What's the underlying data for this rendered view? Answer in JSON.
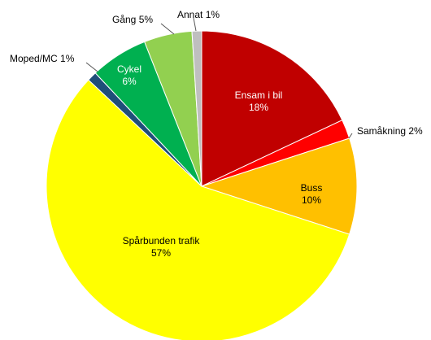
{
  "chart_data": {
    "type": "pie",
    "categories": [
      "Ensam i bil",
      "Samåkning",
      "Buss",
      "Spårbunden trafik",
      "Moped/MC",
      "Cykel",
      "Gång",
      "Annat"
    ],
    "values": [
      18,
      2,
      10,
      57,
      1,
      6,
      5,
      1
    ],
    "labels": [
      "18%",
      "2%",
      "10%",
      "57%",
      "1%",
      "6%",
      "5%",
      "1%"
    ],
    "colors": [
      "#c00000",
      "#ff0000",
      "#ffc000",
      "#ffff00",
      "#1f4e79",
      "#00b050",
      "#92d050",
      "#bfbfbf"
    ],
    "label_colors": [
      "#ffffff",
      "#000000",
      "#000000",
      "#000000",
      "#000000",
      "#ffffff",
      "#000000",
      "#000000"
    ],
    "label_placement": [
      "inside",
      "outside",
      "inside",
      "inside",
      "outside",
      "inside",
      "outside",
      "outside"
    ],
    "start": "12 o'clock",
    "direction": "clockwise",
    "legend": "none",
    "title": ""
  }
}
